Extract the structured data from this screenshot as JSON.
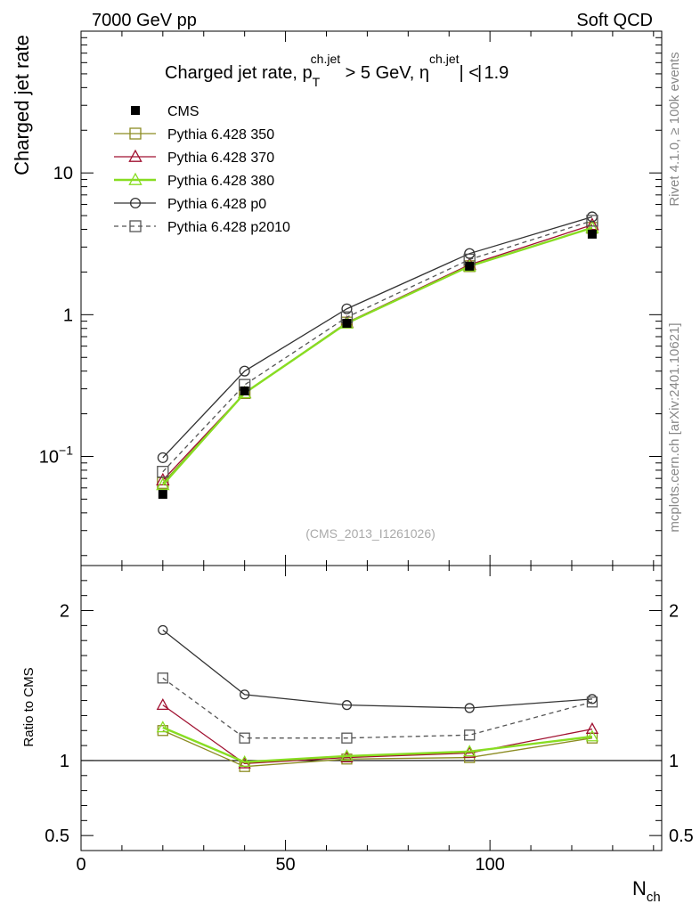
{
  "header": {
    "left": "7000 GeV pp",
    "right": "Soft QCD"
  },
  "side_labels": {
    "rivet": "Rivet 4.1.0, ≥ 100k events",
    "mcplots": "mcplots.cern.ch [arXiv:2401.10621]"
  },
  "chart_data": {
    "type": "line",
    "title": {
      "main": "Charged jet rate, p",
      "sub": "T",
      "sup": "ch.jet",
      "middle": " > 5 GeV,  η",
      "sup2": "ch.jet",
      "end": "| < 1.9",
      "bar": "|"
    },
    "watermark": "(CMS_2013_I1261026)",
    "xlabel": "N",
    "xlabel_sub": "ch",
    "ylabel_main": "Charged jet rate",
    "ylabel_ratio": "Ratio to CMS",
    "xlim": [
      0,
      142
    ],
    "ylim_main": [
      0.017,
      100
    ],
    "ylim_ratio": [
      0.4,
      2.3
    ],
    "yscale_main": "log",
    "x_ticks": [
      {
        "v": 0,
        "label": "0"
      },
      {
        "v": 50,
        "label": "50"
      },
      {
        "v": 100,
        "label": "100"
      }
    ],
    "y_ticks_main": [
      {
        "v": 0.1,
        "base": "10",
        "exp": "−1"
      },
      {
        "v": 1,
        "base": "1",
        "exp": ""
      },
      {
        "v": 10,
        "base": "10",
        "exp": ""
      }
    ],
    "y_ticks_ratio": [
      {
        "v": 0.5,
        "label": "0.5"
      },
      {
        "v": 1,
        "label": "1"
      },
      {
        "v": 2,
        "label": "2"
      }
    ],
    "x": [
      20,
      40,
      65,
      95,
      125
    ],
    "series": [
      {
        "name": "CMS",
        "color": "#000000",
        "marker": "filled-square",
        "line": "none",
        "values": [
          0.054,
          0.29,
          0.87,
          2.2,
          3.7
        ],
        "ratio": [
          1.0,
          1.0,
          1.0,
          1.0,
          1.0
        ]
      },
      {
        "name": "Pythia 6.428 350",
        "color": "#8c8c22",
        "marker": "open-square",
        "line": "solid",
        "values": [
          0.065,
          0.28,
          0.88,
          2.2,
          4.1
        ],
        "ratio": [
          1.2,
          0.96,
          1.01,
          1.02,
          1.15
        ]
      },
      {
        "name": "Pythia 6.428 370",
        "color": "#a01030",
        "marker": "open-triangle",
        "line": "solid",
        "values": [
          0.068,
          0.28,
          0.88,
          2.25,
          4.3
        ],
        "ratio": [
          1.37,
          0.98,
          1.02,
          1.05,
          1.21
        ]
      },
      {
        "name": "Pythia 6.428 380",
        "color": "#88dd22",
        "marker": "open-triangle",
        "line": "solid",
        "values": [
          0.063,
          0.28,
          0.87,
          2.2,
          4.1
        ],
        "ratio": [
          1.22,
          0.99,
          1.03,
          1.06,
          1.16
        ]
      },
      {
        "name": "Pythia 6.428 p0",
        "color": "#333333",
        "marker": "open-circle",
        "line": "solid",
        "values": [
          0.098,
          0.4,
          1.1,
          2.7,
          4.9
        ],
        "ratio": [
          1.87,
          1.44,
          1.37,
          1.35,
          1.41
        ]
      },
      {
        "name": "Pythia 6.428 p2010",
        "color": "#555555",
        "marker": "open-square",
        "line": "dashed",
        "values": [
          0.078,
          0.32,
          0.96,
          2.45,
          4.6
        ],
        "ratio": [
          1.55,
          1.15,
          1.15,
          1.17,
          1.39
        ]
      }
    ],
    "legend_position": "top-left"
  }
}
